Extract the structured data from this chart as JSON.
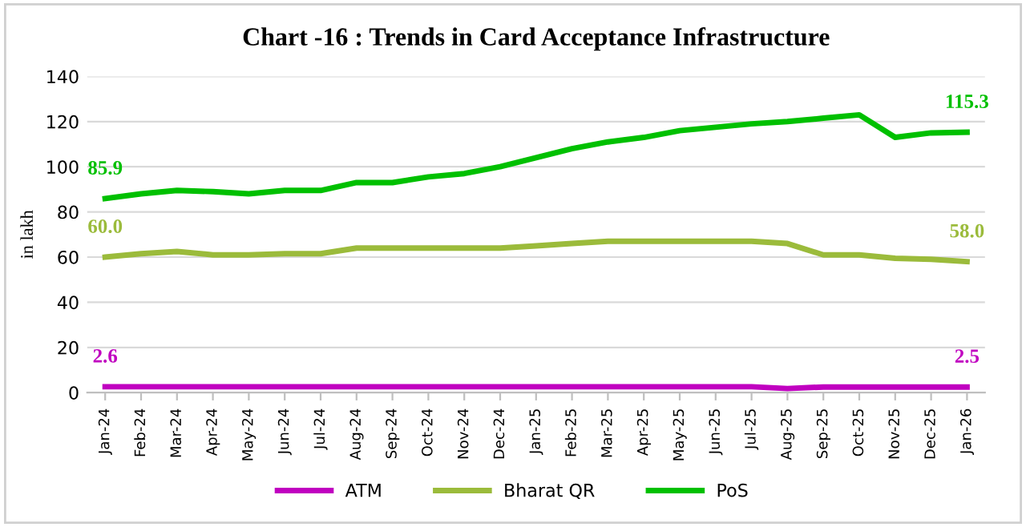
{
  "chart_data": {
    "type": "line",
    "title": "Chart -16 : Trends in Card Acceptance Infrastructure",
    "ylabel": "in lakh",
    "categories": [
      "Jan-24",
      "Feb-24",
      "Mar-24",
      "Apr-24",
      "May-24",
      "Jun-24",
      "Jul-24",
      "Aug-24",
      "Sep-24",
      "Oct-24",
      "Nov-24",
      "Dec-24",
      "Jan-25",
      "Feb-25",
      "Mar-25",
      "Apr-25",
      "May-25",
      "Jun-25",
      "Jul-25",
      "Aug-25",
      "Sep-25",
      "Oct-25",
      "Nov-25",
      "Dec-25",
      "Jan-26"
    ],
    "series": [
      {
        "name": "ATM",
        "color": "#c000c0",
        "values": [
          2.6,
          2.6,
          2.6,
          2.6,
          2.6,
          2.6,
          2.6,
          2.6,
          2.6,
          2.6,
          2.6,
          2.6,
          2.6,
          2.6,
          2.6,
          2.6,
          2.6,
          2.6,
          2.6,
          1.8,
          2.5,
          2.5,
          2.5,
          2.5,
          2.5
        ],
        "value_labels": [
          "2.6",
          null,
          null,
          null,
          null,
          null,
          null,
          null,
          null,
          null,
          null,
          null,
          null,
          null,
          null,
          null,
          null,
          null,
          null,
          null,
          null,
          null,
          null,
          null,
          "2.5"
        ]
      },
      {
        "name": "Bharat QR",
        "color": "#9bbb3b",
        "values": [
          60.0,
          61.5,
          62.5,
          61,
          61,
          61.5,
          61.5,
          64,
          64,
          64,
          64,
          64,
          65,
          66,
          67,
          67,
          67,
          67,
          67,
          66,
          61,
          61,
          59.5,
          59,
          58.0
        ],
        "value_labels": [
          "60.0",
          null,
          null,
          null,
          null,
          null,
          null,
          null,
          null,
          null,
          null,
          null,
          null,
          null,
          null,
          null,
          null,
          null,
          null,
          null,
          null,
          null,
          null,
          null,
          "58.0"
        ]
      },
      {
        "name": "PoS",
        "color": "#00c000",
        "values": [
          85.9,
          88,
          89.5,
          89,
          88,
          89.5,
          89.5,
          93,
          93,
          95.5,
          97,
          100,
          104,
          108,
          111,
          113,
          116,
          117.5,
          119,
          120,
          121.5,
          123,
          113,
          115,
          115.3
        ],
        "value_labels": [
          "85.9",
          null,
          null,
          null,
          null,
          null,
          null,
          null,
          null,
          null,
          null,
          null,
          null,
          null,
          null,
          null,
          null,
          null,
          null,
          null,
          null,
          null,
          null,
          null,
          "115.3"
        ]
      }
    ],
    "ylim": [
      0,
      140
    ],
    "yticks": [
      0,
      20,
      40,
      60,
      80,
      100,
      120,
      140
    ],
    "grid": "y",
    "legend": "bottom"
  }
}
